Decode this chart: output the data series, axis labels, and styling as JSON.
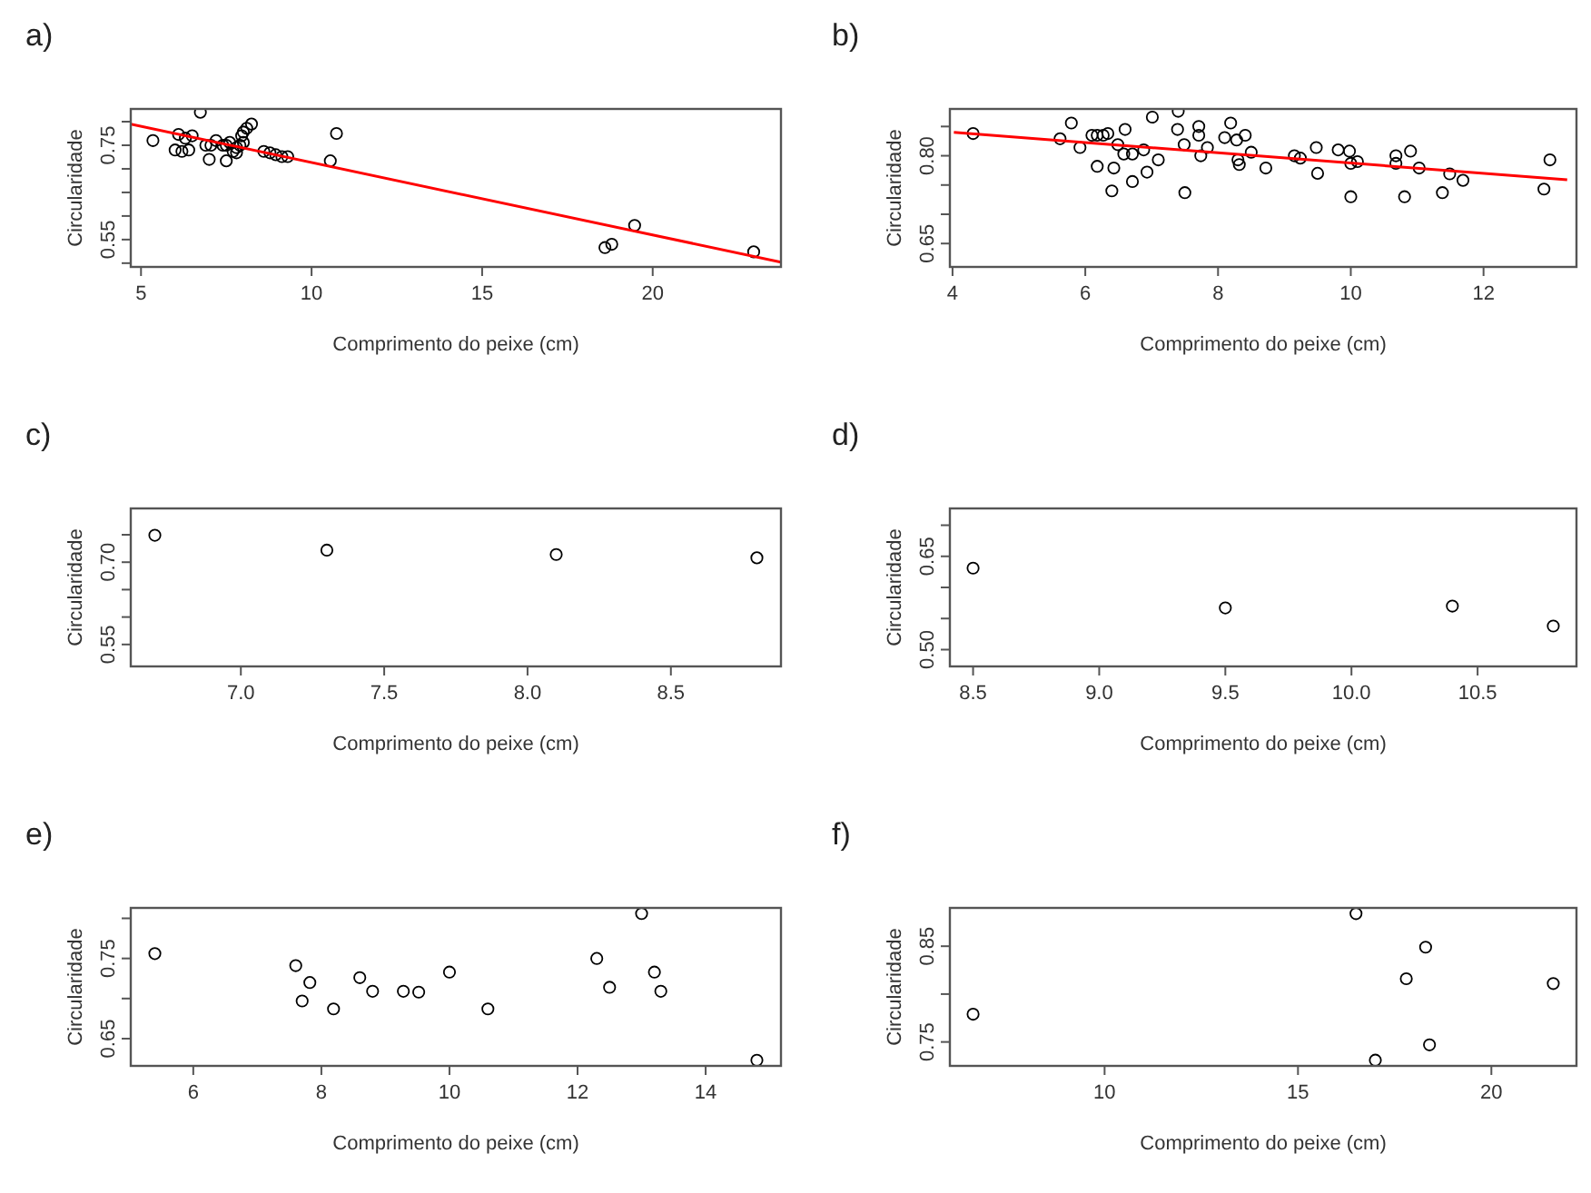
{
  "chart_data": [
    {
      "type": "scatter",
      "title": "a)",
      "xlabel": "Comprimento do peixe (cm)",
      "ylabel": "Circularidade",
      "xlim": [
        4.7,
        23.76
      ],
      "xticks": [
        5,
        10,
        15,
        20
      ],
      "ylim": [
        0.492,
        0.827
      ],
      "yticks": [
        {
          "value": 0.5,
          "label": null
        },
        0.55,
        {
          "value": 0.6,
          "label": null
        },
        {
          "value": 0.65,
          "label": null
        },
        {
          "value": 0.7,
          "label": null
        },
        0.75,
        {
          "value": 0.8,
          "label": null
        }
      ],
      "series": [
        {
          "marker": "circle",
          "color": "#000000",
          "x": [
            5.35,
            6.74,
            6.1,
            6.3,
            6.5,
            6.0,
            6.2,
            6.4,
            7.0,
            7.5,
            7.2,
            7.4,
            7.5,
            7.6,
            7.8,
            7.9,
            8.0,
            7.95,
            8.0,
            8.1,
            8.24,
            6.9,
            7.05,
            7.7,
            7.8,
            8.6,
            8.78,
            8.95,
            9.13,
            9.3,
            10.73,
            10.55,
            18.6,
            18.8,
            19.47,
            22.96
          ],
          "values": [
            0.76,
            0.82,
            0.773,
            0.765,
            0.77,
            0.74,
            0.737,
            0.74,
            0.72,
            0.717,
            0.76,
            0.75,
            0.75,
            0.756,
            0.745,
            0.75,
            0.756,
            0.77,
            0.778,
            0.786,
            0.795,
            0.75,
            0.75,
            0.737,
            0.734,
            0.737,
            0.734,
            0.73,
            0.726,
            0.726,
            0.775,
            0.717,
            0.533,
            0.54,
            0.58,
            0.524
          ]
        },
        {
          "type": "line",
          "marker": "none",
          "color": "#ff0000",
          "x": [
            4.7,
            23.76
          ],
          "values": [
            0.795,
            0.502
          ]
        }
      ]
    },
    {
      "type": "scatter",
      "title": "b)",
      "xlabel": "Comprimento do peixe (cm)",
      "ylabel": "Circularidade",
      "xlim": [
        3.96,
        13.4
      ],
      "xticks": [
        4,
        6,
        8,
        10,
        12
      ],
      "ylim": [
        0.61,
        0.88
      ],
      "yticks": [
        0.65,
        {
          "value": 0.7,
          "label": null
        },
        {
          "value": 0.75,
          "label": null
        },
        {
          "value": 0.8,
          "label": "0.80"
        },
        {
          "value": 0.85,
          "label": null
        }
      ],
      "series": [
        {
          "marker": "circle",
          "color": "#000000",
          "x": [
            4.31,
            5.62,
            5.79,
            5.92,
            6.1,
            6.18,
            6.27,
            6.34,
            6.18,
            6.43,
            6.4,
            6.49,
            6.6,
            6.58,
            6.71,
            6.71,
            6.93,
            6.88,
            7.01,
            7.1,
            7.4,
            7.39,
            7.49,
            7.5,
            7.71,
            7.71,
            7.74,
            7.84,
            8.1,
            8.19,
            8.28,
            8.41,
            8.5,
            8.3,
            8.32,
            8.72,
            9.15,
            9.24,
            9.48,
            9.5,
            9.81,
            9.98,
            10.0,
            10.1,
            10.0,
            10.68,
            10.68,
            10.9,
            11.03,
            10.81,
            11.38,
            11.49,
            11.69,
            12.91,
            13.0
          ],
          "values": [
            0.838,
            0.829,
            0.856,
            0.814,
            0.835,
            0.835,
            0.835,
            0.838,
            0.782,
            0.779,
            0.74,
            0.819,
            0.845,
            0.803,
            0.803,
            0.756,
            0.772,
            0.81,
            0.866,
            0.793,
            0.876,
            0.845,
            0.819,
            0.737,
            0.85,
            0.835,
            0.8,
            0.814,
            0.831,
            0.856,
            0.827,
            0.835,
            0.806,
            0.793,
            0.785,
            0.779,
            0.8,
            0.796,
            0.814,
            0.77,
            0.81,
            0.808,
            0.787,
            0.79,
            0.73,
            0.8,
            0.787,
            0.808,
            0.779,
            0.73,
            0.737,
            0.769,
            0.758,
            0.743,
            0.793
          ]
        },
        {
          "type": "line",
          "marker": "none",
          "color": "#ff0000",
          "x": [
            4.02,
            13.26
          ],
          "values": [
            0.84,
            0.759
          ]
        }
      ]
    },
    {
      "type": "scatter",
      "title": "c)",
      "xlabel": "Comprimento do peixe (cm)",
      "ylabel": "Circularidade",
      "xlim": [
        6.616,
        8.884
      ],
      "xticks": [
        {
          "value": 7.0,
          "label": "7.0"
        },
        7.5,
        {
          "value": 8.0,
          "label": "8.0"
        },
        8.5
      ],
      "ylim": [
        0.51,
        0.798
      ],
      "yticks": [
        0.55,
        {
          "value": 0.6,
          "label": null
        },
        {
          "value": 0.65,
          "label": null
        },
        {
          "value": 0.7,
          "label": "0.70"
        },
        {
          "value": 0.75,
          "label": null
        }
      ],
      "series": [
        {
          "marker": "circle",
          "color": "#000000",
          "x": [
            6.7,
            7.3,
            8.1,
            8.8
          ],
          "values": [
            0.749,
            0.722,
            0.714,
            0.708
          ]
        }
      ]
    },
    {
      "type": "scatter",
      "title": "d)",
      "xlabel": "Comprimento do peixe (cm)",
      "ylabel": "Circularidade",
      "xlim": [
        8.408,
        10.892
      ],
      "xticks": [
        8.5,
        {
          "value": 9.0,
          "label": "9.0"
        },
        9.5,
        {
          "value": 10.0,
          "label": "10.0"
        },
        10.5
      ],
      "ylim": [
        0.473,
        0.727
      ],
      "yticks": [
        {
          "value": 0.5,
          "label": "0.50"
        },
        {
          "value": 0.55,
          "label": null
        },
        {
          "value": 0.6,
          "label": null
        },
        0.65,
        {
          "value": 0.7,
          "label": null
        }
      ],
      "series": [
        {
          "marker": "circle",
          "color": "#000000",
          "x": [
            8.5,
            9.5,
            10.4,
            10.8
          ],
          "values": [
            0.631,
            0.567,
            0.57,
            0.538
          ]
        }
      ]
    },
    {
      "type": "scatter",
      "title": "e)",
      "xlabel": "Comprimento do peixe (cm)",
      "ylabel": "Circularidade",
      "xlim": [
        5.024,
        15.176
      ],
      "xticks": [
        6,
        8,
        10,
        12,
        14
      ],
      "ylim": [
        0.616,
        0.813
      ],
      "yticks": [
        0.65,
        {
          "value": 0.7,
          "label": null
        },
        0.75,
        {
          "value": 0.8,
          "label": null
        }
      ],
      "series": [
        {
          "marker": "circle",
          "color": "#000000",
          "x": [
            5.4,
            7.6,
            7.7,
            7.82,
            8.19,
            8.6,
            8.8,
            9.28,
            9.52,
            10.0,
            10.6,
            12.3,
            12.5,
            13.0,
            13.2,
            13.3,
            14.8
          ],
          "values": [
            0.756,
            0.741,
            0.697,
            0.72,
            0.687,
            0.726,
            0.709,
            0.709,
            0.708,
            0.733,
            0.687,
            0.75,
            0.714,
            0.806,
            0.733,
            0.709,
            0.623
          ]
        }
      ]
    },
    {
      "type": "scatter",
      "title": "f)",
      "xlabel": "Comprimento do peixe (cm)",
      "ylabel": "Circularidade",
      "xlim": [
        6.0,
        22.2
      ],
      "xticks": [
        10,
        15,
        20
      ],
      "ylim": [
        0.725,
        0.89
      ],
      "yticks": [
        0.75,
        {
          "value": 0.8,
          "label": null
        },
        0.85
      ],
      "series": [
        {
          "marker": "circle",
          "color": "#000000",
          "x": [
            6.6,
            16.5,
            18.3,
            17.8,
            18.4,
            17.0,
            21.6
          ],
          "values": [
            0.779,
            0.884,
            0.849,
            0.816,
            0.747,
            0.731,
            0.811
          ]
        }
      ]
    }
  ]
}
